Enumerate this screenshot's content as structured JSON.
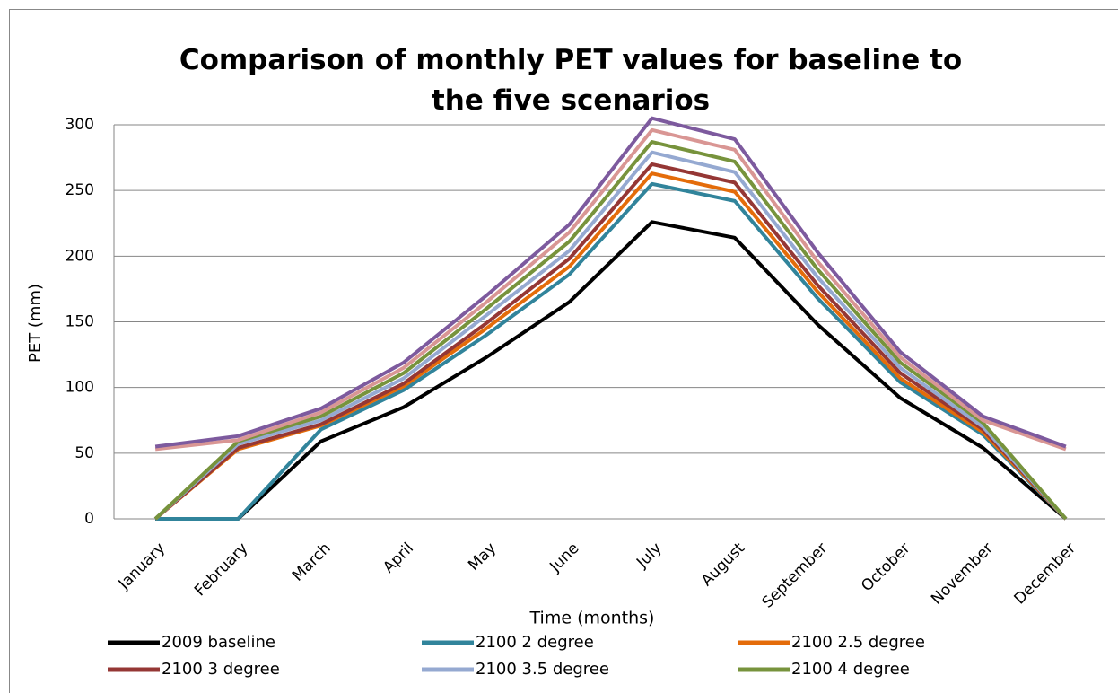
{
  "chart_data": {
    "type": "line",
    "title": "Comparison of monthly PET values for baseline to the five scenarios",
    "x_label": "Time (months)",
    "y_label": "PET (mm)",
    "categories": [
      "January",
      "February",
      "March",
      "April",
      "May",
      "June",
      "July",
      "August",
      "September",
      "October",
      "November",
      "December"
    ],
    "ylim": [
      0,
      300
    ],
    "yticks": [
      0,
      50,
      100,
      150,
      200,
      250,
      300
    ],
    "grid": true,
    "series": [
      {
        "name": "2009 baseline",
        "color": "#000000",
        "values": [
          0,
          0,
          59,
          85,
          123,
          165,
          226,
          214,
          148,
          92,
          54,
          0
        ]
      },
      {
        "name": "2100 2 degree",
        "color": "#31849b",
        "values": [
          0,
          0,
          68,
          98,
          140,
          186,
          255,
          242,
          168,
          104,
          64,
          0
        ]
      },
      {
        "name": "2100 2.5 degree",
        "color": "#e46c0a",
        "values": [
          0,
          53,
          71,
          101,
          145,
          192,
          263,
          249,
          173,
          107,
          66,
          0
        ]
      },
      {
        "name": "2100 3 degree",
        "color": "#953735",
        "values": [
          0,
          54,
          72,
          103,
          149,
          198,
          270,
          256,
          178,
          111,
          68,
          0
        ]
      },
      {
        "name": "2100 3.5 degree",
        "color": "#95a9d1",
        "values": [
          0,
          57,
          75,
          107,
          155,
          204,
          279,
          264,
          184,
          115,
          70,
          0
        ]
      },
      {
        "name": "2100 4 degree",
        "color": "#77933c",
        "values": [
          0,
          59,
          78,
          111,
          160,
          211,
          287,
          272,
          190,
          119,
          73,
          0
        ]
      },
      {
        "color": "#d99694",
        "values": [
          53,
          60,
          81,
          115,
          165,
          218,
          296,
          281,
          196,
          123,
          75,
          53
        ]
      },
      {
        "color": "#7d5a9e",
        "values": [
          55,
          63,
          84,
          119,
          170,
          224,
          305,
          289,
          203,
          127,
          78,
          55
        ]
      }
    ]
  }
}
